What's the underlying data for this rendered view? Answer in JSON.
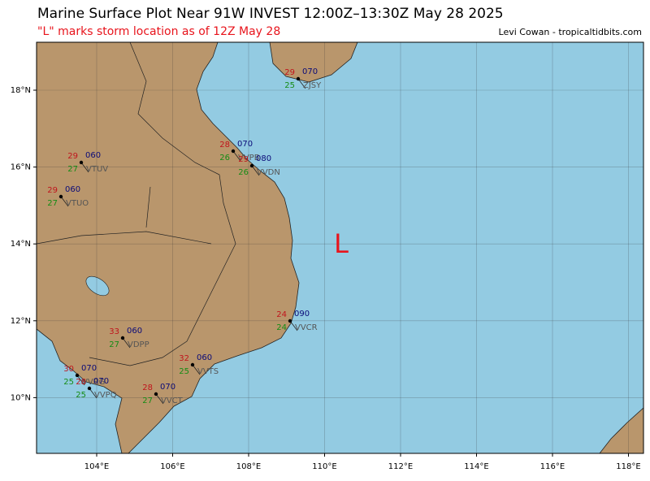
{
  "title": "Marine Surface Plot Near 91W INVEST 12:00Z–13:30Z May 28 2025",
  "subtitle": "\"L\" marks storm location as of 12Z May 28",
  "credit": "Levi Cowan - tropicaltidbits.com",
  "storm_marker": "L",
  "lon_ticks": [
    {
      "value": 104,
      "label": "104°E"
    },
    {
      "value": 106,
      "label": "106°E"
    },
    {
      "value": 108,
      "label": "108°E"
    },
    {
      "value": 110,
      "label": "110°E"
    },
    {
      "value": 112,
      "label": "112°E"
    },
    {
      "value": 114,
      "label": "114°E"
    },
    {
      "value": 116,
      "label": "116°E"
    },
    {
      "value": 118,
      "label": "118°E"
    }
  ],
  "lat_ticks": [
    {
      "value": 18,
      "label": "18°N"
    },
    {
      "value": 16,
      "label": "16°N"
    },
    {
      "value": 14,
      "label": "14°N"
    },
    {
      "value": 12,
      "label": "12°N"
    },
    {
      "value": 10,
      "label": "10°N"
    }
  ],
  "stations": [
    {
      "id": "ZJSY",
      "temp": "29",
      "dewpoint": "25",
      "pressure": "070"
    },
    {
      "id": "VVPB",
      "temp": "28",
      "dewpoint": "26",
      "pressure": "070"
    },
    {
      "id": "VVDN",
      "temp": "29",
      "dewpoint": "26",
      "pressure": "080"
    },
    {
      "id": "VTUV",
      "temp": "29",
      "dewpoint": "27",
      "pressure": "060"
    },
    {
      "id": "VTUO",
      "temp": "29",
      "dewpoint": "27",
      "pressure": "060"
    },
    {
      "id": "VVCR",
      "temp": "24",
      "dewpoint": "24",
      "pressure": "090"
    },
    {
      "id": "VDPP",
      "temp": "33",
      "dewpoint": "27",
      "pressure": "060"
    },
    {
      "id": "VVTS",
      "temp": "32",
      "dewpoint": "25",
      "pressure": "060"
    },
    {
      "id": "VVCT",
      "temp": "28",
      "dewpoint": "27",
      "pressure": "070"
    },
    {
      "id": "VVRG",
      "temp": "30",
      "dewpoint": "25",
      "pressure": "070"
    },
    {
      "id": "VVPQ",
      "temp": "28",
      "dewpoint": "25",
      "pressure": "070"
    }
  ]
}
